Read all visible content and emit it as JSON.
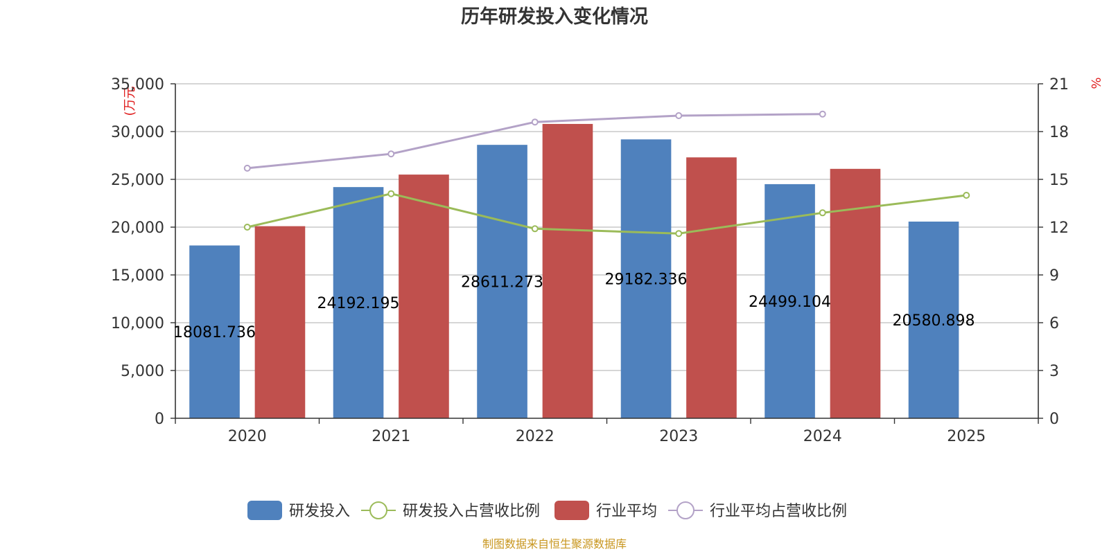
{
  "chart_data": {
    "type": "bar",
    "title": "历年研发投入变化情况",
    "categories": [
      "2020",
      "2021",
      "2022",
      "2023",
      "2024",
      "2025"
    ],
    "y_left": {
      "unit": "(万元",
      "min": 0,
      "max": 35000,
      "ticks": [
        "0",
        "5,000",
        "10,000",
        "15,000",
        "20,000",
        "25,000",
        "30,000",
        "35,000"
      ]
    },
    "y_right": {
      "unit": "%",
      "min": 0,
      "max": 21,
      "ticks": [
        "0",
        "3",
        "6",
        "9",
        "12",
        "15",
        "18",
        "21"
      ]
    },
    "series": [
      {
        "name": "研发投入",
        "type": "bar",
        "axis": "left",
        "color": "#4f81bd",
        "values": [
          18081.736,
          24192.195,
          28611.273,
          29182.336,
          24499.104,
          20580.898
        ],
        "labels": [
          "18081.736",
          "24192.195",
          "28611.273",
          "29182.336",
          "24499.104",
          "20580.898"
        ]
      },
      {
        "name": "研发投入占营收比例",
        "type": "line",
        "axis": "right",
        "color": "#9bbb59",
        "values": [
          12.0,
          14.1,
          11.9,
          11.6,
          12.9,
          14.0
        ]
      },
      {
        "name": "行业平均",
        "type": "bar",
        "axis": "left",
        "color": "#c0504d",
        "values": [
          20100,
          25500,
          30800,
          27300,
          26100,
          null
        ]
      },
      {
        "name": "行业平均占营收比例",
        "type": "line",
        "axis": "right",
        "color": "#b3a2c7",
        "values": [
          15.7,
          16.6,
          18.6,
          19.0,
          19.1,
          null
        ]
      }
    ],
    "grid": true,
    "legend_position": "bottom"
  },
  "source": "制图数据来自恒生聚源数据库"
}
